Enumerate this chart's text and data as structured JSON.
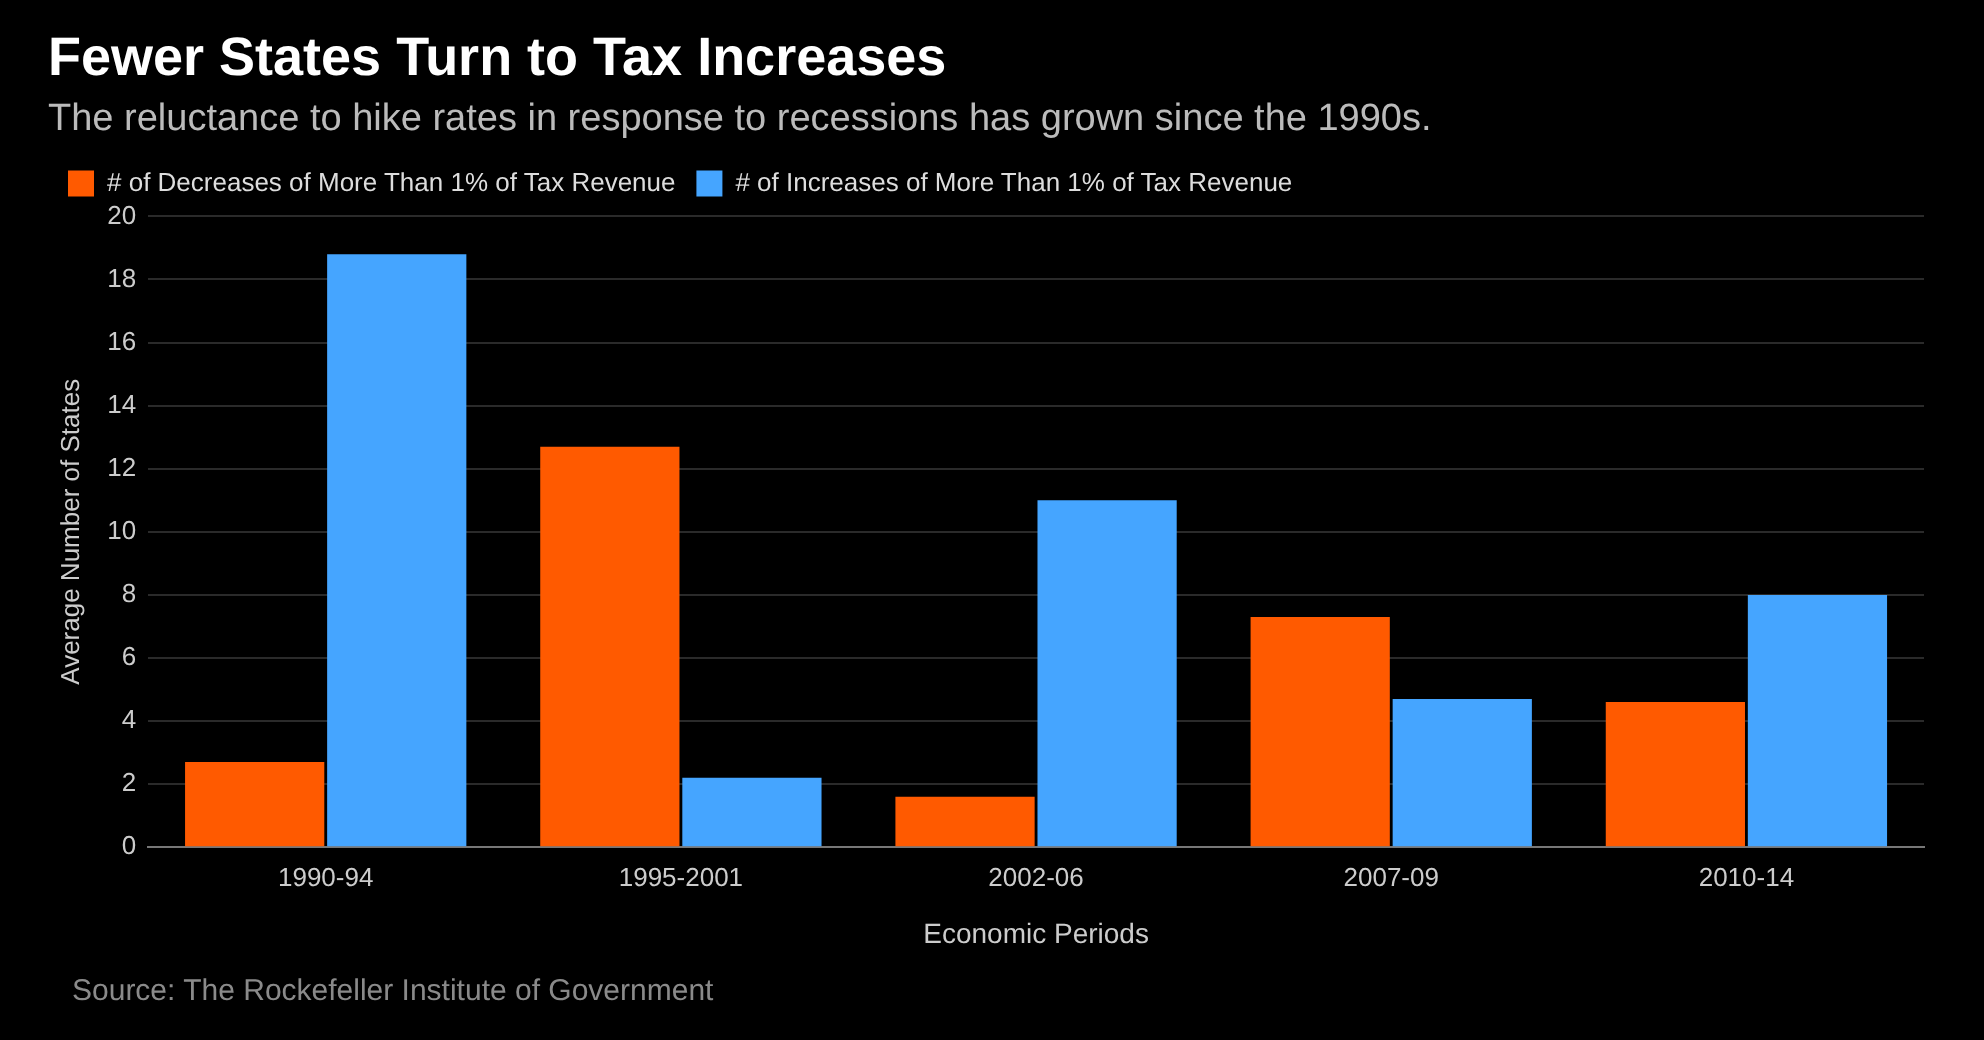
{
  "chart_data": {
    "type": "bar",
    "title": "Fewer States Turn to Tax Increases",
    "subtitle": "The reluctance to hike rates in response to recessions has grown since the 1990s.",
    "xlabel": "Economic Periods",
    "ylabel": "Average Number of States",
    "categories": [
      "1990-94",
      "1995-2001",
      "2002-06",
      "2007-09",
      "2010-14"
    ],
    "series": [
      {
        "name": "# of Decreases of More Than 1% of Tax Revenue",
        "color": "#ff5a00",
        "values": [
          2.7,
          12.7,
          1.6,
          7.3,
          4.6
        ]
      },
      {
        "name": "# of Increases of More Than 1% of Tax Revenue",
        "color": "#45a5ff",
        "values": [
          18.8,
          2.2,
          11.0,
          4.7,
          8.0
        ]
      }
    ],
    "ylim": [
      0,
      20
    ],
    "yticks": [
      0,
      2,
      4,
      6,
      8,
      10,
      12,
      14,
      16,
      18,
      20
    ],
    "grid": "y",
    "legend": "top left",
    "annotations": [
      "Source: The Rockefeller Institute of Government"
    ]
  }
}
